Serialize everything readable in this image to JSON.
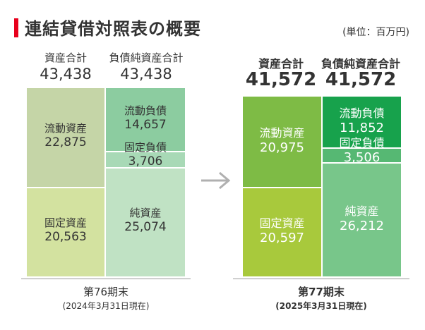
{
  "header": {
    "title": "連結貸借対照表の概要",
    "unit": "(単位：百万円)"
  },
  "chart_data": {
    "type": "bar",
    "title": "連結貸借対照表の概要",
    "unit": "(単位：百万円)",
    "periods": [
      {
        "name": "第76期末",
        "date": "(2024年3月31日現在)",
        "assets_total_label": "資産合計",
        "assets_total": "43,438",
        "liab_total_label": "負債純資産合計",
        "liab_total": "43,438",
        "assets": [
          {
            "label": "流動資産",
            "value": 22875,
            "display": "22,875",
            "color": "#c5d5a7"
          },
          {
            "label": "固定資産",
            "value": 20563,
            "display": "20,563",
            "color": "#d3e2a0"
          }
        ],
        "liabilities": [
          {
            "label": "流動負債",
            "value": 14657,
            "display": "14,657",
            "color": "#8ccca0"
          },
          {
            "label": "固定負債",
            "value": 3706,
            "display": "3,706",
            "color": "#a8d9b6"
          },
          {
            "label": "純資産",
            "value": 25074,
            "display": "25,074",
            "color": "#c0e2c4"
          }
        ]
      },
      {
        "name": "第77期末",
        "date": "(2025年3月31日現在)",
        "assets_total_label": "資産合計",
        "assets_total": "41,572",
        "liab_total_label": "負債純資産合計",
        "liab_total": "41,572",
        "assets": [
          {
            "label": "流動資産",
            "value": 20975,
            "display": "20,975",
            "color": "#7ebb45"
          },
          {
            "label": "固定資産",
            "value": 20597,
            "display": "20,597",
            "color": "#a8c93c"
          }
        ],
        "liabilities": [
          {
            "label": "流動負債",
            "value": 11852,
            "display": "11,852",
            "color": "#17a24c"
          },
          {
            "label": "固定負債",
            "value": 3506,
            "display": "3,506",
            "color": "#56b873"
          },
          {
            "label": "純資産",
            "value": 26212,
            "display": "26,212",
            "color": "#78c68a"
          }
        ]
      }
    ]
  }
}
